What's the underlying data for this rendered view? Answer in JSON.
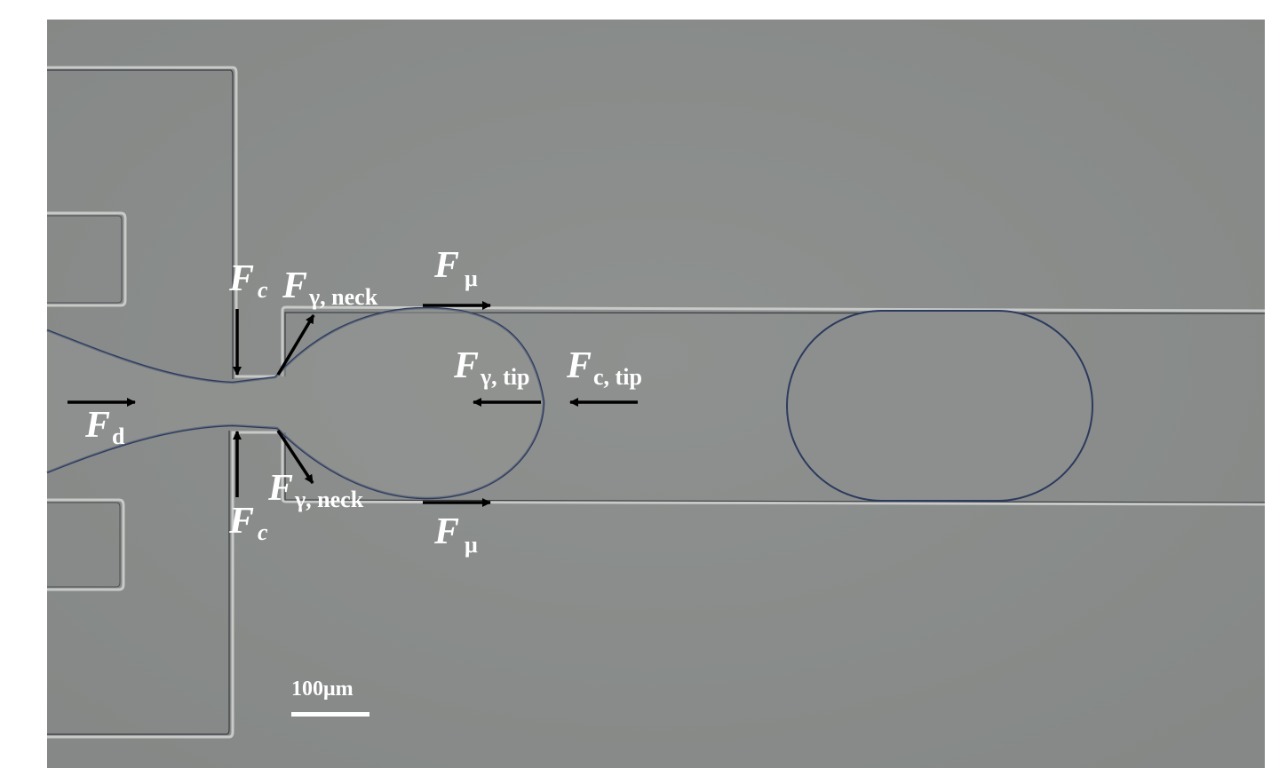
{
  "labels": {
    "fc_top": {
      "main": "F",
      "sub": "c"
    },
    "fgamma_neck_top": {
      "main": "F",
      "sub": "γ, neck"
    },
    "fmu_top": {
      "main": "F",
      "sub": "μ"
    },
    "fgamma_tip": {
      "main": "F",
      "sub": "γ, tip"
    },
    "fc_tip": {
      "main": "F",
      "sub": "c, tip"
    },
    "fd": {
      "main": "F",
      "sub": "d"
    },
    "fgamma_neck_bottom": {
      "main": "F",
      "sub": "γ, neck"
    },
    "fc_bottom": {
      "main": "F",
      "sub": "c"
    },
    "fmu_bottom": {
      "main": "F",
      "sub": "μ"
    }
  },
  "scale_bar": {
    "label": "100μm"
  },
  "colors": {
    "background": "#8b8e8c",
    "interface": "#2c3a5e",
    "arrow": "#000000",
    "text": "#ffffff"
  }
}
